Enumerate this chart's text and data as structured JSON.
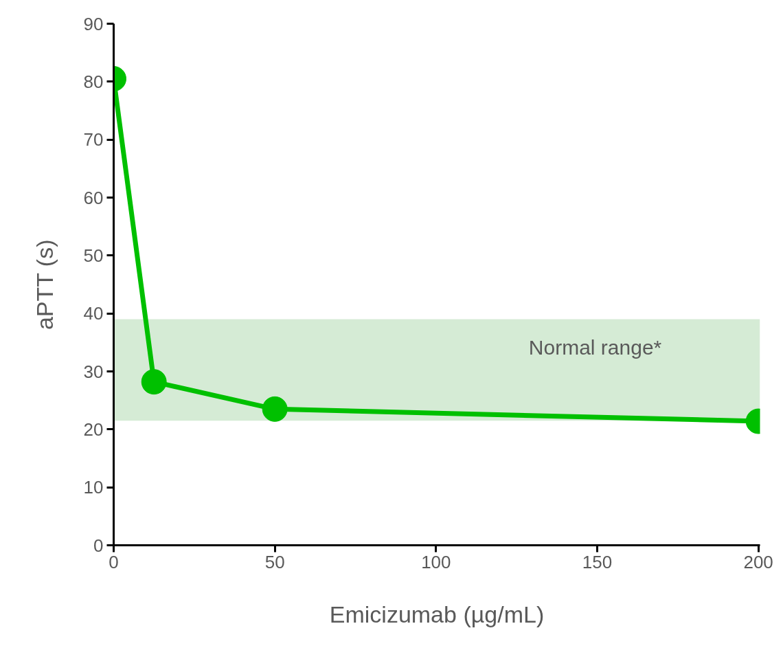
{
  "chart_data": {
    "type": "line",
    "xlabel": "Emicizumab (µg/mL)",
    "ylabel": "aPTT (s)",
    "x": [
      0,
      12.5,
      50,
      200
    ],
    "series": [
      {
        "color": "#00c000",
        "values": [
          80.5,
          28.2,
          23.5,
          21.4
        ]
      }
    ],
    "xlim": [
      0,
      200.5
    ],
    "xticks": [
      0,
      50,
      100,
      150,
      200
    ],
    "ylim": [
      0,
      90
    ],
    "yticks": [
      0,
      10,
      20,
      30,
      40,
      50,
      60,
      70,
      80,
      90
    ],
    "bands": [
      {
        "axis": "y",
        "from": 21.5,
        "to": 39,
        "label": "Normal range*",
        "color": "#d5ebd5"
      }
    ],
    "grid": false,
    "marker": "circle",
    "line_style": "solid"
  }
}
